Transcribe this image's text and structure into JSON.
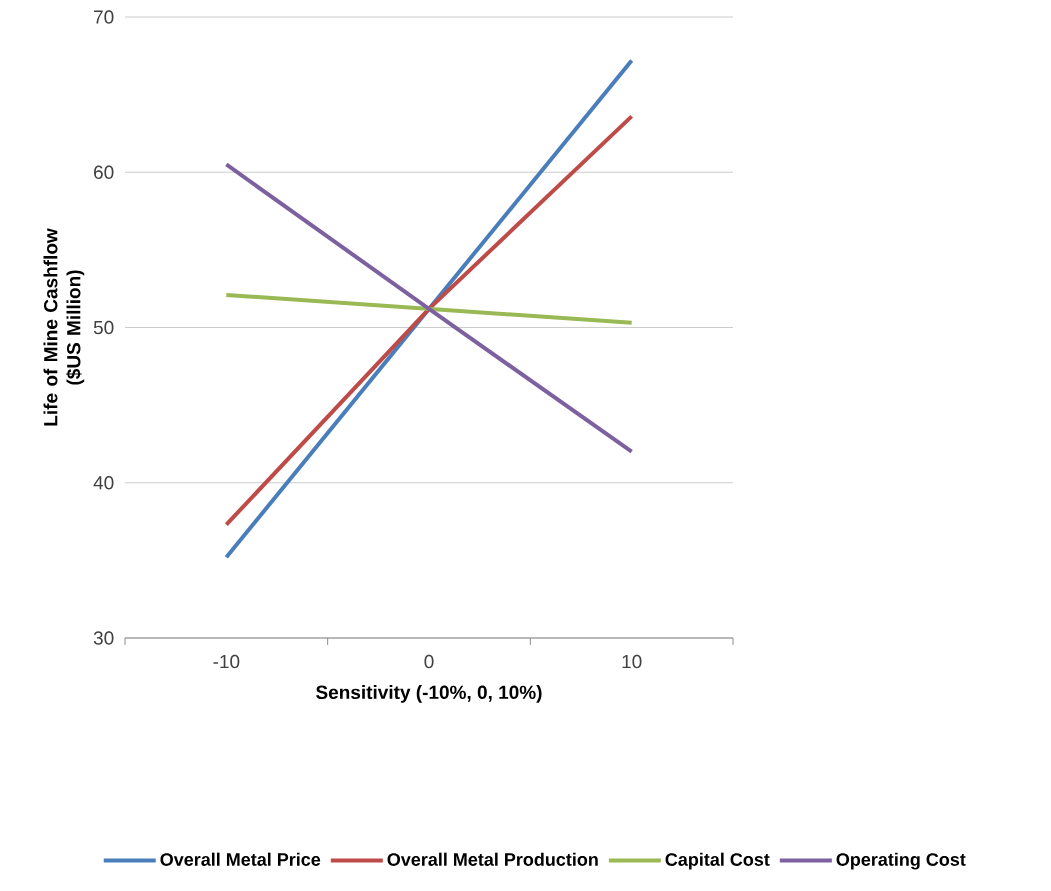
{
  "chart_data": {
    "type": "line",
    "xlabel": "Sensitivity (-10%, 0, 10%)",
    "ylabel": "Life of Mine Cashflow ($US Million)",
    "categories": [
      "-10",
      "0",
      "10"
    ],
    "series": [
      {
        "name": "Overall Metal Price",
        "color": "#4a7ebb",
        "values": [
          35.2,
          51.2,
          67.2
        ]
      },
      {
        "name": "Overall Metal Production",
        "color": "#be4b48",
        "values": [
          37.3,
          51.2,
          63.6
        ]
      },
      {
        "name": "Capital Cost",
        "color": "#98b954",
        "values": [
          52.1,
          51.2,
          50.3
        ]
      },
      {
        "name": "Operating Cost",
        "color": "#7d60a0",
        "values": [
          60.5,
          51.2,
          42.0
        ]
      }
    ],
    "ylim": [
      30,
      70
    ],
    "yticks": [
      30,
      40,
      50,
      60,
      70
    ],
    "grid": "y",
    "legend": "bottom",
    "marker": "none",
    "line_style": "solid"
  }
}
